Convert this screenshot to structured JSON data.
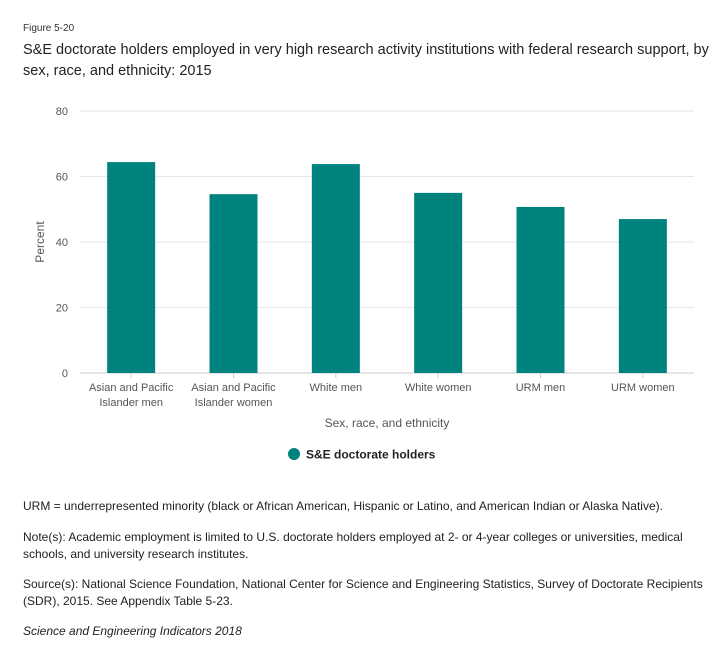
{
  "figure_label": "Figure 5-20",
  "title": "S&E doctorate holders employed in very high research activity institutions with federal research support, by sex, race, and ethnicity: 2015",
  "chart_data": {
    "type": "bar",
    "categories": [
      [
        "Asian and Pacific",
        "Islander men"
      ],
      [
        "Asian and Pacific",
        "Islander women"
      ],
      [
        "White men"
      ],
      [
        "White women"
      ],
      [
        "URM men"
      ],
      [
        "URM women"
      ]
    ],
    "series": [
      {
        "name": "S&E doctorate holders",
        "values": [
          64.4,
          54.6,
          63.8,
          55.0,
          50.7,
          47.0
        ]
      }
    ],
    "title": "S&E doctorate holders employed in very high research activity institutions with federal research support, by sex, race, and ethnicity: 2015",
    "xlabel": "Sex, race, and ethnicity",
    "ylabel": "Percent",
    "ylim": [
      0,
      80
    ],
    "yticks": [
      0,
      20,
      40,
      60,
      80
    ],
    "grid": true,
    "legend": "bottom-center"
  },
  "colors": {
    "bar": "#00827e",
    "grid": "#e6e6e6",
    "axis": "#cccccc",
    "tick_text": "#555555"
  },
  "notes": {
    "urm": "URM = underrepresented minority (black or African American, Hispanic or Latino, and American Indian or Alaska Native).",
    "note": "Note(s): Academic employment is limited to U.S. doctorate holders employed at 2- or 4-year colleges or universities, medical schools, and university research institutes.",
    "source": "Source(s): National Science Foundation, National Center for Science and Engineering Statistics, Survey of Doctorate Recipients (SDR), 2015. See Appendix Table 5-23.",
    "credit": "Science and Engineering Indicators 2018"
  }
}
